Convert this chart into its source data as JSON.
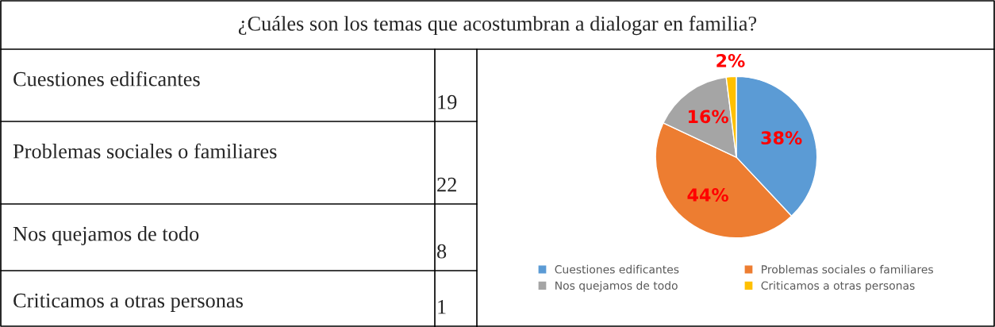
{
  "chart_data": [
    {
      "type": "other",
      "title": "¿Cuáles son los temas que acostumbran a dialogar en familia?",
      "categories": [
        "Cuestiones edificantes",
        "Problemas sociales o familiares",
        "Nos quejamos de todo",
        "Criticamos a otras personas"
      ],
      "values": [
        19,
        22,
        8,
        1
      ],
      "data_labels": true
    },
    {
      "type": "pie",
      "categories": [
        "Cuestiones edificantes",
        "Problemas sociales o familiares",
        "Nos quejamos de todo",
        "Criticamos a otras personas"
      ],
      "values": [
        38,
        44,
        16,
        2
      ],
      "colors": [
        "#5b9bd5",
        "#ed7d31",
        "#a5a5a5",
        "#ffc000"
      ],
      "value_labels": [
        "38%",
        "44%",
        "16%",
        "2%"
      ],
      "legend": "bottom"
    }
  ]
}
